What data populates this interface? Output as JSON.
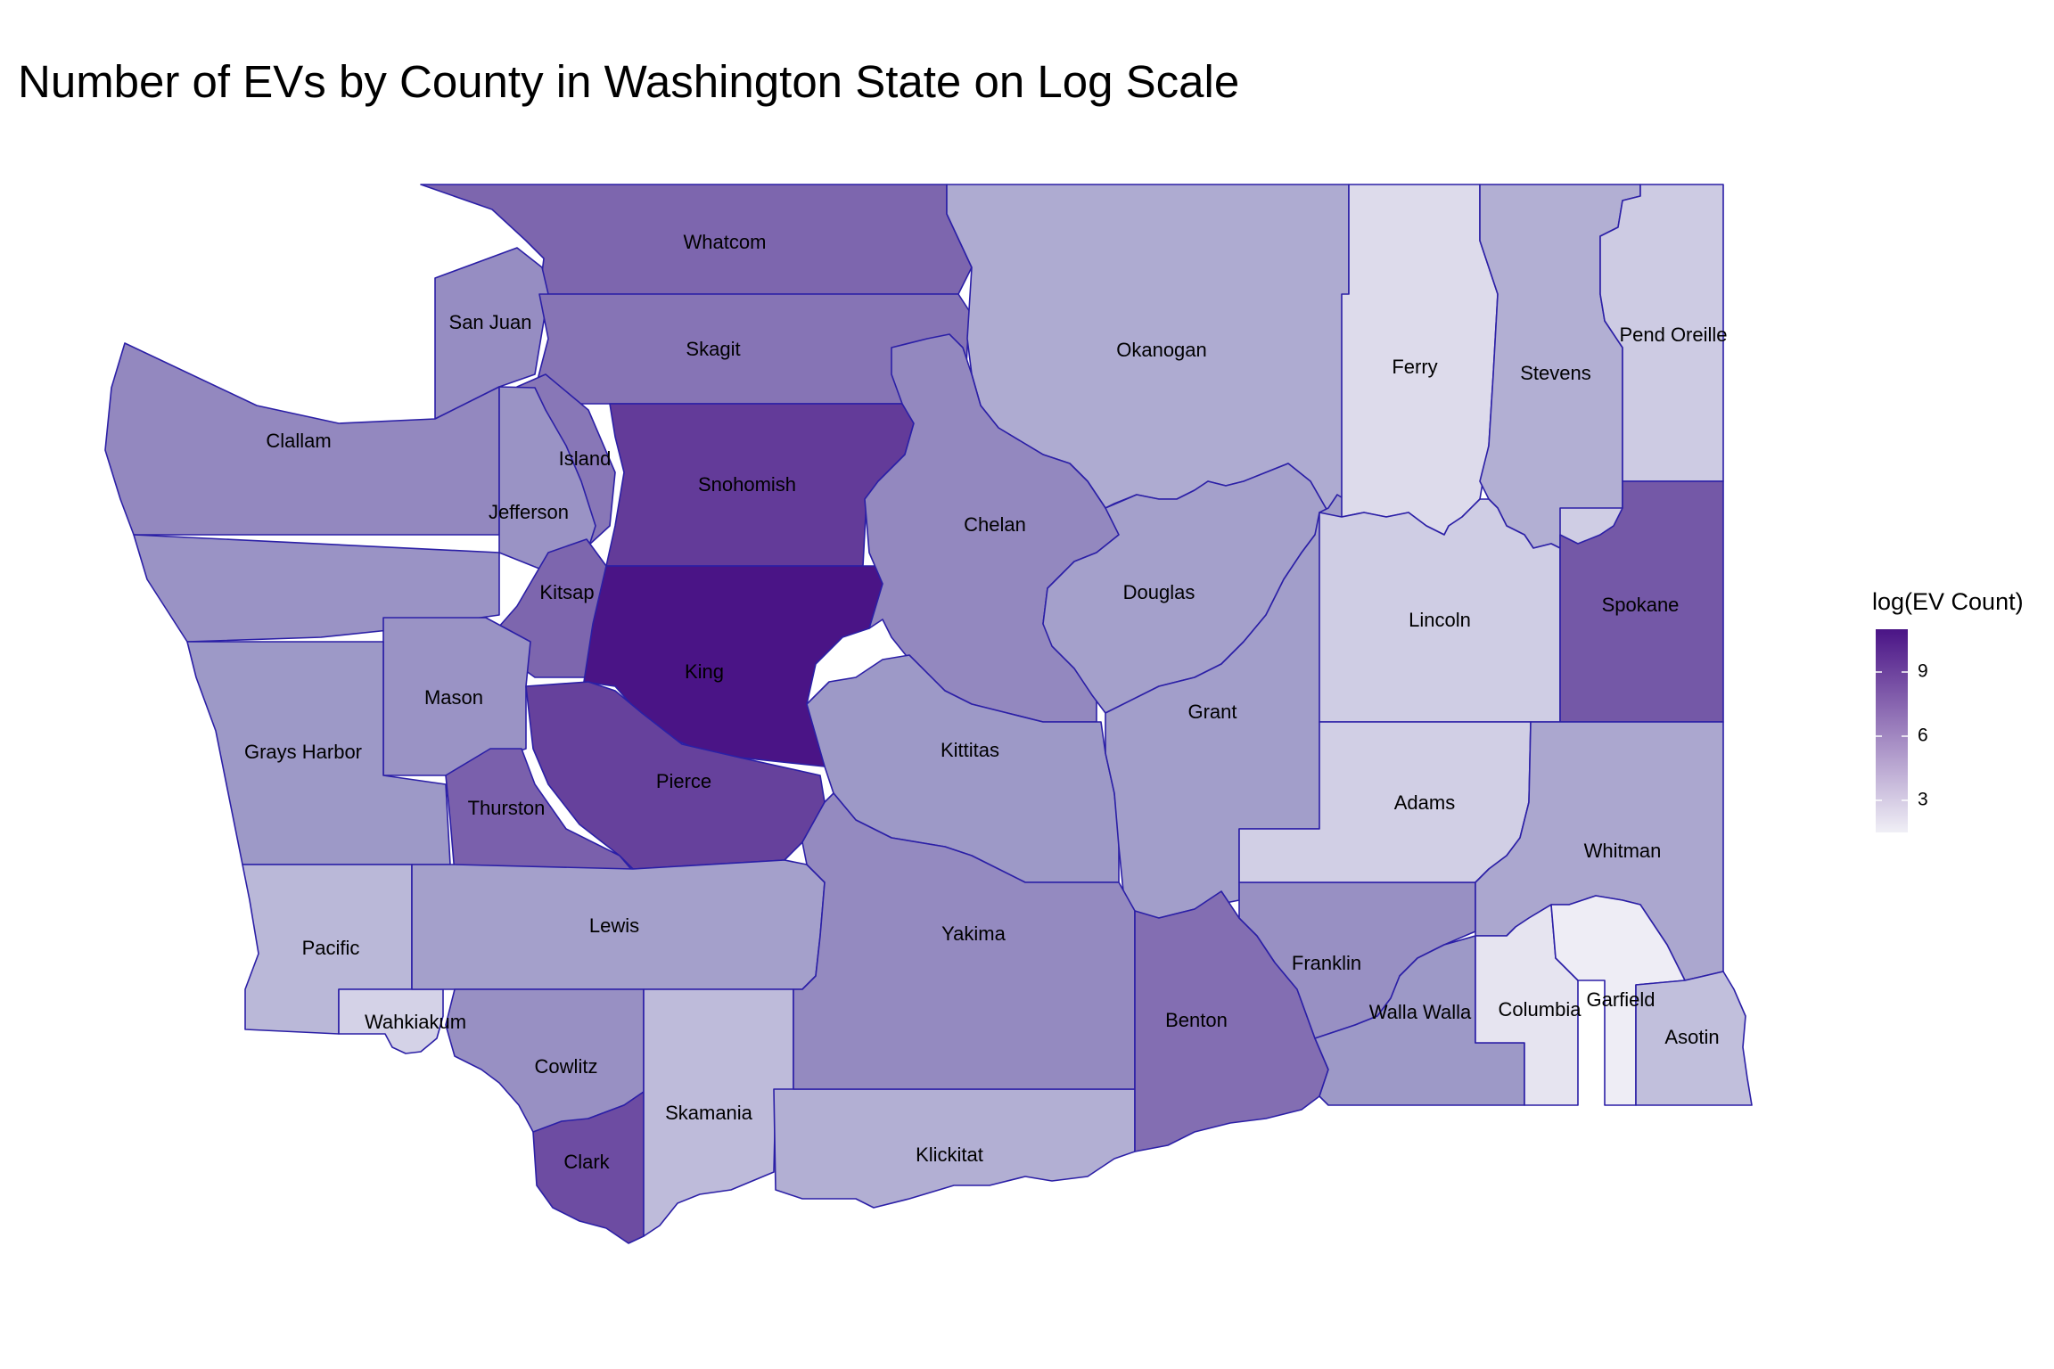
{
  "title": "Number of EVs by County in Washington State on Log Scale",
  "chart_data": {
    "type": "choropleth",
    "region": "Washington State counties",
    "legend": {
      "title": "log(EV Count)",
      "ticks": [
        3,
        6,
        9
      ],
      "range": [
        1.5,
        11
      ],
      "color_low": "#f0eff6",
      "color_high": "#4a1486",
      "placement": "right"
    },
    "counties": [
      {
        "name": "Whatcom",
        "value": 8.1
      },
      {
        "name": "San Juan",
        "value": 6.7
      },
      {
        "name": "Skagit",
        "value": 7.6
      },
      {
        "name": "Clallam",
        "value": 6.9
      },
      {
        "name": "Island",
        "value": 7.5
      },
      {
        "name": "Jefferson",
        "value": 6.5
      },
      {
        "name": "Snohomish",
        "value": 9.6
      },
      {
        "name": "Kitsap",
        "value": 8.1
      },
      {
        "name": "King",
        "value": 11.0
      },
      {
        "name": "Mason",
        "value": 6.5
      },
      {
        "name": "Grays Harbor",
        "value": 6.3
      },
      {
        "name": "Thurston",
        "value": 8.3
      },
      {
        "name": "Pierce",
        "value": 9.4
      },
      {
        "name": "Pacific",
        "value": 4.6
      },
      {
        "name": "Wahkiakum",
        "value": 3.1
      },
      {
        "name": "Lewis",
        "value": 5.9
      },
      {
        "name": "Cowlitz",
        "value": 6.6
      },
      {
        "name": "Clark",
        "value": 9.0
      },
      {
        "name": "Skamania",
        "value": 4.4
      },
      {
        "name": "Klickitat",
        "value": 5.1
      },
      {
        "name": "Okanogan",
        "value": 5.3
      },
      {
        "name": "Chelan",
        "value": 6.9
      },
      {
        "name": "Douglas",
        "value": 5.9
      },
      {
        "name": "Kittitas",
        "value": 6.3
      },
      {
        "name": "Grant",
        "value": 6.0
      },
      {
        "name": "Yakima",
        "value": 6.8
      },
      {
        "name": "Benton",
        "value": 7.8
      },
      {
        "name": "Franklin",
        "value": 6.6
      },
      {
        "name": "Walla Walla",
        "value": 6.3
      },
      {
        "name": "Ferry",
        "value": 2.6
      },
      {
        "name": "Stevens",
        "value": 5.1
      },
      {
        "name": "Pend Oreille",
        "value": 3.5
      },
      {
        "name": "Lincoln",
        "value": 3.4
      },
      {
        "name": "Spokane",
        "value": 8.6
      },
      {
        "name": "Adams",
        "value": 3.3
      },
      {
        "name": "Whitman",
        "value": 5.5
      },
      {
        "name": "Columbia",
        "value": 2.1
      },
      {
        "name": "Garfield",
        "value": 1.6
      },
      {
        "name": "Asotin",
        "value": 4.2
      }
    ]
  }
}
